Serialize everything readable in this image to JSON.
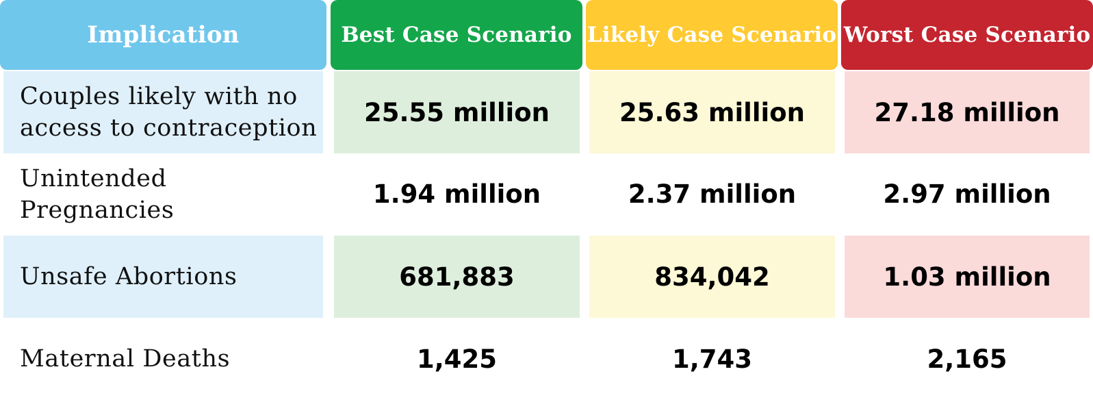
{
  "colors": {
    "implication_header": "#70c7ec",
    "best_header": "#14a64b",
    "likely_header": "#ffca32",
    "worst_header": "#c4252f",
    "implication_row_fill": "#dff0fa",
    "best_row_fill": "#ddeedd",
    "likely_row_fill": "#fdf8d6",
    "worst_row_fill": "#fbdada"
  },
  "headers": {
    "implication": "Implication",
    "best": "Best Case Scenario",
    "likely": "Likely Case Scenario",
    "worst": "Worst Case Scenario"
  },
  "rows": [
    {
      "label": "Couples likely with no access to contraception",
      "best": "25.55 million",
      "likely": "25.63 million",
      "worst": "27.18 million"
    },
    {
      "label": "Unintended Pregnancies",
      "best": "1.94 million",
      "likely": "2.37 million",
      "worst": "2.97 million"
    },
    {
      "label": "Unsafe Abortions",
      "best": "681,883",
      "likely": "834,042",
      "worst": "1.03 million"
    },
    {
      "label": "Maternal Deaths",
      "best": "1,425",
      "likely": "1,743",
      "worst": "2,165"
    }
  ]
}
